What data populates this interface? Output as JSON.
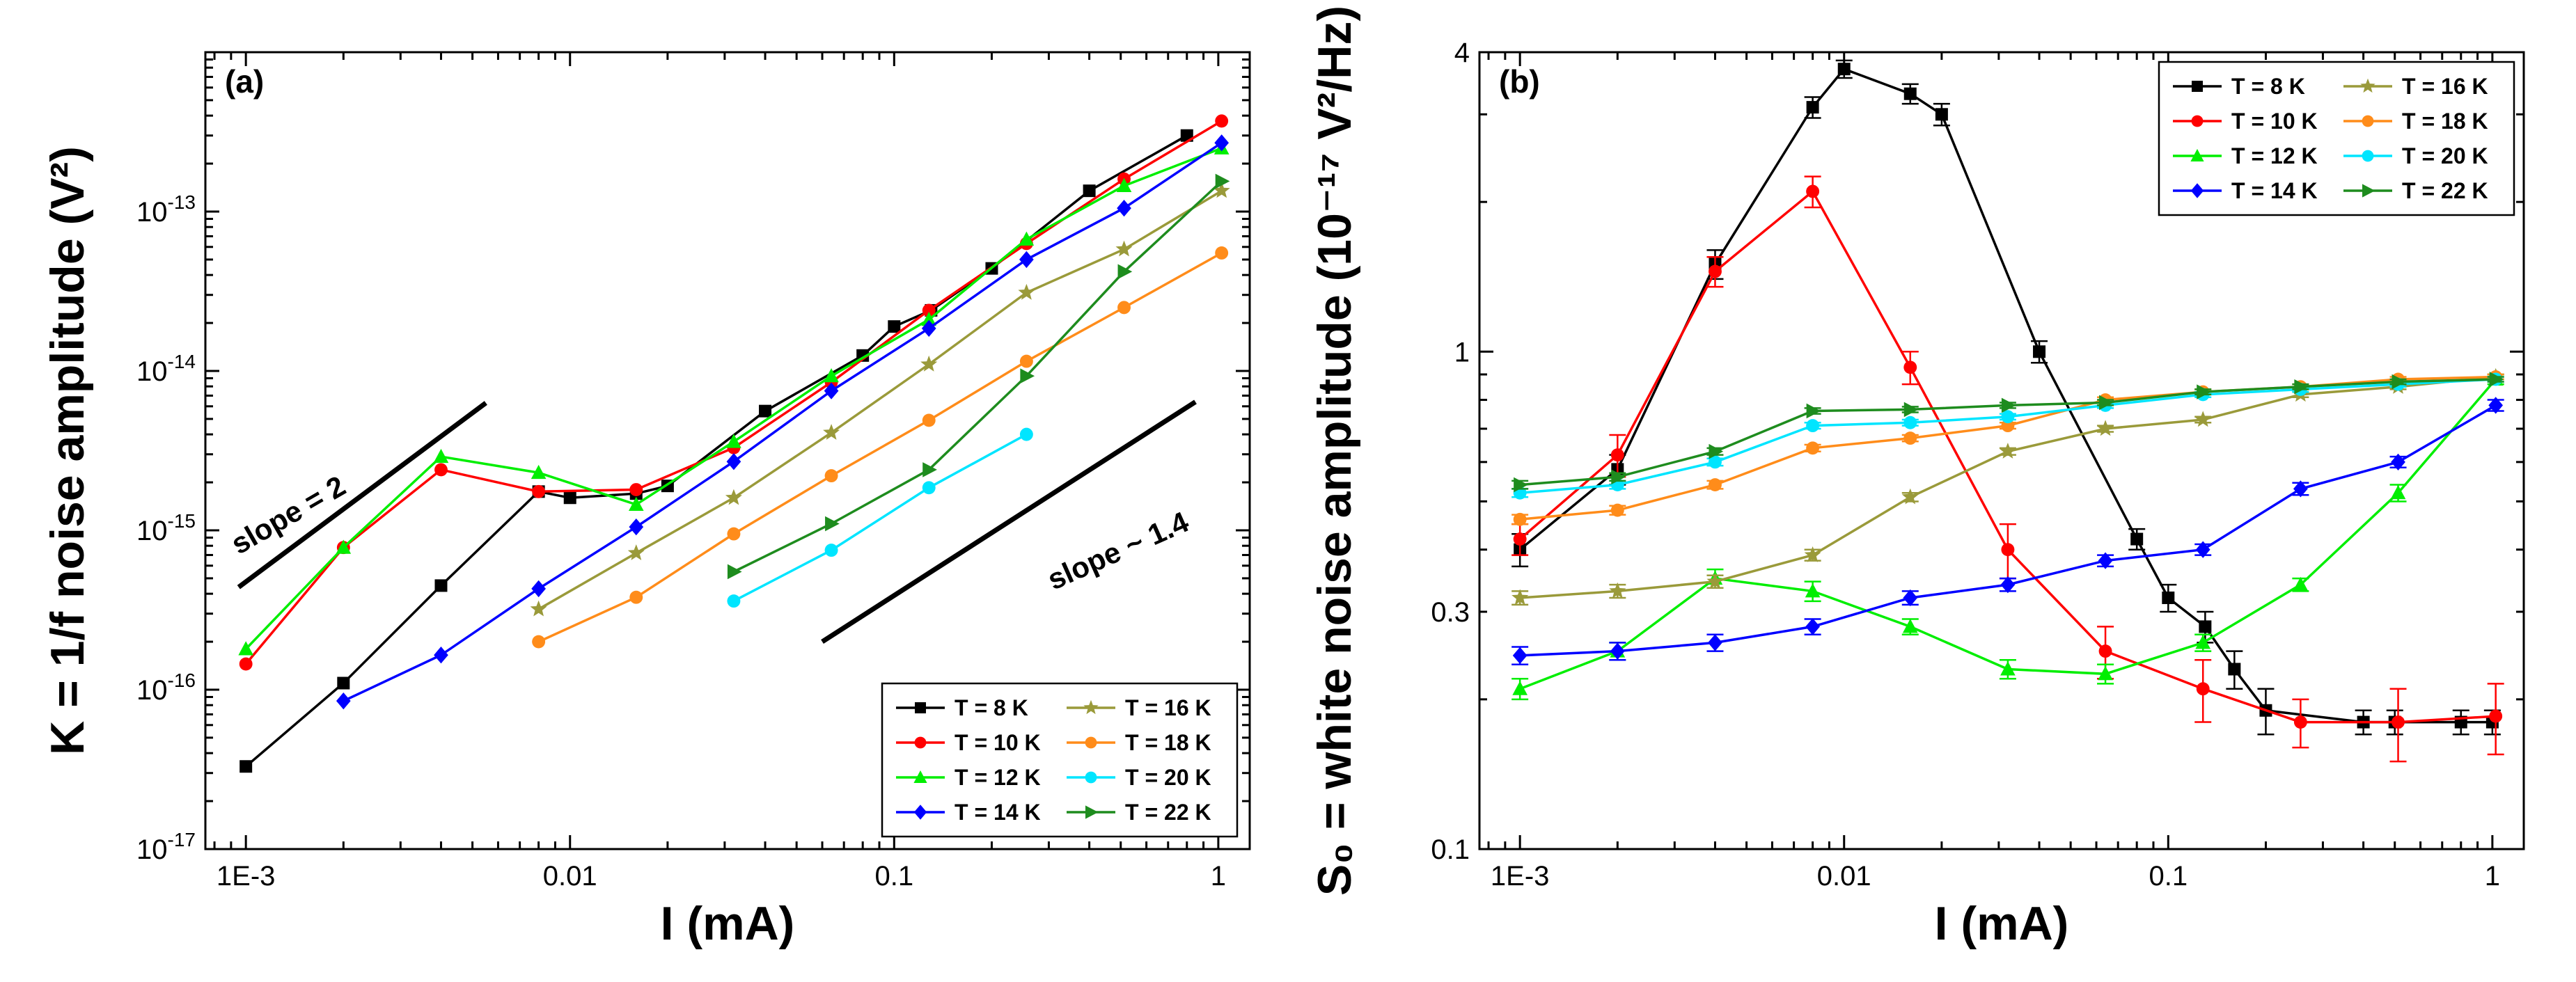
{
  "chart_data": [
    {
      "type": "line",
      "panel_label": "(a)",
      "title": "",
      "xlabel": "I (mA)",
      "ylabel": "K = 1/f noise amplitude (V²)",
      "xscale": "log",
      "yscale": "log",
      "xlim": [
        0.00075,
        1.25
      ],
      "ylim": [
        1e-17,
        1e-12
      ],
      "xticks": [
        {
          "value": 0.001,
          "label": "1E-3"
        },
        {
          "value": 0.01,
          "label": "0.01"
        },
        {
          "value": 0.1,
          "label": "0.1"
        },
        {
          "value": 1,
          "label": "1"
        }
      ],
      "yticks": [
        {
          "value": 1e-17,
          "mant": "10",
          "exp": "-17"
        },
        {
          "value": 1e-16,
          "mant": "10",
          "exp": "-16"
        },
        {
          "value": 1e-15,
          "mant": "10",
          "exp": "-15"
        },
        {
          "value": 1e-14,
          "mant": "10",
          "exp": "-14"
        },
        {
          "value": 1e-13,
          "mant": "10",
          "exp": "-13"
        }
      ],
      "legend_position": "bottom-right",
      "series": [
        {
          "name": "T = 8 K",
          "color": "#000000",
          "marker": "square",
          "x": [
            0.001,
            0.002,
            0.004,
            0.008,
            0.01,
            0.016,
            0.02,
            0.04,
            0.08,
            0.1,
            0.13,
            0.2,
            0.4,
            0.8
          ],
          "y": [
            3.3e-17,
            1.1e-16,
            4.5e-16,
            1.75e-15,
            1.6e-15,
            1.7e-15,
            1.9e-15,
            5.6e-15,
            1.25e-14,
            1.9e-14,
            2.4e-14,
            4.4e-14,
            1.35e-13,
            3e-13
          ]
        },
        {
          "name": "T = 10 K",
          "color": "#ff0000",
          "marker": "circle",
          "x": [
            0.001,
            0.002,
            0.004,
            0.008,
            0.016,
            0.032,
            0.064,
            0.128,
            0.256,
            0.512,
            1.024
          ],
          "y": [
            1.45e-16,
            7.8e-16,
            2.4e-15,
            1.75e-15,
            1.8e-15,
            3.3e-15,
            8.5e-15,
            2.4e-14,
            6.3e-14,
            1.6e-13,
            3.7e-13
          ]
        },
        {
          "name": "T = 12 K",
          "color": "#00ee00",
          "marker": "triangle",
          "x": [
            0.001,
            0.002,
            0.004,
            0.008,
            0.016,
            0.032,
            0.064,
            0.128,
            0.256,
            0.512,
            1.024
          ],
          "y": [
            1.8e-16,
            7.8e-16,
            2.9e-15,
            2.3e-15,
            1.45e-15,
            3.6e-15,
            9.3e-15,
            2.1e-14,
            6.7e-14,
            1.45e-13,
            2.5e-13
          ]
        },
        {
          "name": "T = 14 K",
          "color": "#0000ff",
          "marker": "diamond",
          "x": [
            0.002,
            0.004,
            0.008,
            0.016,
            0.032,
            0.064,
            0.128,
            0.256,
            0.512,
            1.024
          ],
          "y": [
            8.5e-17,
            1.65e-16,
            4.3e-16,
            1.05e-15,
            2.7e-15,
            7.5e-15,
            1.85e-14,
            5e-14,
            1.05e-13,
            2.7e-13
          ]
        },
        {
          "name": "T = 16 K",
          "color": "#9a9a3a",
          "marker": "star",
          "x": [
            0.008,
            0.016,
            0.032,
            0.064,
            0.128,
            0.256,
            0.512,
            1.024
          ],
          "y": [
            3.2e-16,
            7.2e-16,
            1.6e-15,
            4.1e-15,
            1.1e-14,
            3.1e-14,
            5.8e-14,
            1.35e-13
          ]
        },
        {
          "name": "T = 18 K",
          "color": "#ff8c1a",
          "marker": "circle",
          "x": [
            0.008,
            0.016,
            0.032,
            0.064,
            0.128,
            0.256,
            0.512,
            1.024
          ],
          "y": [
            2e-16,
            3.8e-16,
            9.5e-16,
            2.2e-15,
            4.9e-15,
            1.15e-14,
            2.5e-14,
            5.5e-14
          ]
        },
        {
          "name": "T = 20 K",
          "color": "#00e5ff",
          "marker": "circle",
          "x": [
            0.032,
            0.064,
            0.128,
            0.256
          ],
          "y": [
            3.6e-16,
            7.5e-16,
            1.85e-15,
            4e-15
          ]
        },
        {
          "name": "T = 22 K",
          "color": "#1e8c1e",
          "marker": "tri-right",
          "x": [
            0.032,
            0.064,
            0.128,
            0.256,
            0.512,
            1.024
          ],
          "y": [
            5.5e-16,
            1.1e-15,
            2.4e-15,
            9.3e-15,
            4.2e-14,
            1.55e-13
          ]
        }
      ],
      "annotations": [
        {
          "text": "slope = 2",
          "x": 0.00095,
          "y": 7e-16,
          "angle": -30
        },
        {
          "text": "slope ~ 1.4",
          "x": 0.31,
          "y": 4.2e-16,
          "angle": -24
        }
      ],
      "guide_lines": [
        {
          "x": [
            0.00095,
            0.0055
          ],
          "y": [
            4.4e-16,
            6.3e-15
          ]
        },
        {
          "x": [
            0.06,
            0.85
          ],
          "y": [
            2e-16,
            6.4e-15
          ]
        }
      ]
    },
    {
      "type": "line",
      "panel_label": "(b)",
      "title": "",
      "xlabel": "I (mA)",
      "ylabel": "S₀ = white noise amplitude (10⁻¹⁷ V²/Hz)",
      "xscale": "log",
      "yscale": "log",
      "xlim": [
        0.00075,
        1.25
      ],
      "ylim": [
        0.1,
        4
      ],
      "xticks": [
        {
          "value": 0.001,
          "label": "1E-3"
        },
        {
          "value": 0.01,
          "label": "0.01"
        },
        {
          "value": 0.1,
          "label": "0.1"
        },
        {
          "value": 1,
          "label": "1"
        }
      ],
      "yticks": [
        {
          "value": 0.1,
          "label": "0.1"
        },
        {
          "value": 0.3,
          "label": "0.3"
        },
        {
          "value": 1,
          "label": "1"
        },
        {
          "value": 4,
          "label": "4"
        }
      ],
      "legend_position": "top-right",
      "series": [
        {
          "name": "T = 8 K",
          "color": "#000000",
          "marker": "square",
          "x": [
            0.001,
            0.002,
            0.004,
            0.008,
            0.01,
            0.016,
            0.02,
            0.04,
            0.08,
            0.1,
            0.13,
            0.16,
            0.2,
            0.4,
            0.5,
            0.8,
            1.0
          ],
          "y": [
            0.4,
            0.58,
            1.5,
            3.1,
            3.7,
            3.3,
            3.0,
            1.0,
            0.42,
            0.32,
            0.28,
            0.23,
            0.19,
            0.18,
            0.18,
            0.18,
            0.18
          ],
          "err": [
            0.03,
            0.04,
            0.1,
            0.15,
            0.15,
            0.15,
            0.15,
            0.05,
            0.02,
            0.02,
            0.02,
            0.02,
            0.02,
            0.01,
            0.01,
            0.01,
            0.01
          ]
        },
        {
          "name": "T = 10 K",
          "color": "#ff0000",
          "marker": "circle",
          "x": [
            0.001,
            0.002,
            0.004,
            0.008,
            0.016,
            0.032,
            0.064,
            0.128,
            0.256,
            0.512,
            1.024
          ],
          "y": [
            0.42,
            0.62,
            1.45,
            2.1,
            0.93,
            0.4,
            0.25,
            0.21,
            0.18,
            0.18,
            0.185
          ],
          "err": [
            0.03,
            0.06,
            0.1,
            0.15,
            0.07,
            0.05,
            0.03,
            0.03,
            0.02,
            0.03,
            0.03
          ]
        },
        {
          "name": "T = 12 K",
          "color": "#00ee00",
          "marker": "triangle",
          "x": [
            0.001,
            0.002,
            0.004,
            0.008,
            0.016,
            0.032,
            0.064,
            0.128,
            0.256,
            0.512,
            1.024
          ],
          "y": [
            0.21,
            0.25,
            0.35,
            0.33,
            0.28,
            0.23,
            0.225,
            0.26,
            0.34,
            0.52,
            0.88
          ],
          "err": [
            0.01,
            0.01,
            0.015,
            0.015,
            0.01,
            0.01,
            0.01,
            0.01,
            0.01,
            0.02,
            0.02
          ]
        },
        {
          "name": "T = 14 K",
          "color": "#0000ff",
          "marker": "diamond",
          "x": [
            0.001,
            0.002,
            0.004,
            0.008,
            0.016,
            0.032,
            0.064,
            0.128,
            0.256,
            0.512,
            1.024
          ],
          "y": [
            0.245,
            0.25,
            0.26,
            0.28,
            0.32,
            0.34,
            0.38,
            0.4,
            0.53,
            0.6,
            0.78
          ],
          "err": [
            0.01,
            0.01,
            0.01,
            0.01,
            0.01,
            0.01,
            0.01,
            0.01,
            0.015,
            0.015,
            0.02
          ]
        },
        {
          "name": "T = 16 K",
          "color": "#9a9a3a",
          "marker": "star",
          "x": [
            0.001,
            0.002,
            0.004,
            0.008,
            0.016,
            0.032,
            0.064,
            0.128,
            0.256,
            0.512,
            1.024
          ],
          "y": [
            0.32,
            0.33,
            0.345,
            0.39,
            0.51,
            0.63,
            0.7,
            0.73,
            0.82,
            0.85,
            0.89
          ],
          "err": [
            0.01,
            0.01,
            0.01,
            0.01,
            0.01,
            0.01,
            0.01,
            0.01,
            0.01,
            0.01,
            0.01
          ]
        },
        {
          "name": "T = 18 K",
          "color": "#ff8c1a",
          "marker": "circle",
          "x": [
            0.001,
            0.002,
            0.004,
            0.008,
            0.016,
            0.032,
            0.064,
            0.128,
            0.256,
            0.512,
            1.024
          ],
          "y": [
            0.46,
            0.48,
            0.54,
            0.64,
            0.67,
            0.71,
            0.8,
            0.83,
            0.85,
            0.88,
            0.89
          ],
          "err": [
            0.01,
            0.01,
            0.01,
            0.01,
            0.01,
            0.01,
            0.01,
            0.01,
            0.01,
            0.01,
            0.01
          ]
        },
        {
          "name": "T = 20 K",
          "color": "#00e5ff",
          "marker": "circle",
          "x": [
            0.001,
            0.002,
            0.004,
            0.008,
            0.016,
            0.032,
            0.064,
            0.128,
            0.256,
            0.512,
            1.024
          ],
          "y": [
            0.52,
            0.54,
            0.6,
            0.71,
            0.72,
            0.74,
            0.78,
            0.82,
            0.84,
            0.86,
            0.88
          ],
          "err": [
            0.01,
            0.01,
            0.01,
            0.01,
            0.01,
            0.01,
            0.01,
            0.01,
            0.01,
            0.01,
            0.01
          ]
        },
        {
          "name": "T = 22 K",
          "color": "#1e8c1e",
          "marker": "tri-right",
          "x": [
            0.001,
            0.002,
            0.004,
            0.008,
            0.016,
            0.032,
            0.064,
            0.128,
            0.256,
            0.512,
            1.024
          ],
          "y": [
            0.54,
            0.56,
            0.63,
            0.76,
            0.765,
            0.78,
            0.79,
            0.83,
            0.85,
            0.87,
            0.88
          ],
          "err": [
            0.01,
            0.01,
            0.01,
            0.01,
            0.01,
            0.01,
            0.01,
            0.01,
            0.01,
            0.01,
            0.01
          ]
        }
      ]
    }
  ]
}
